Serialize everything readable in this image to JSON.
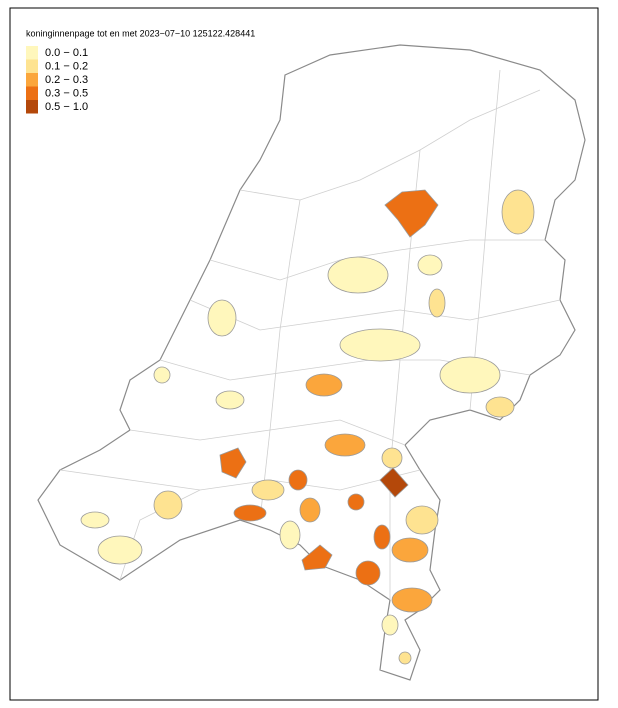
{
  "title": "koninginnenpage tot en met 2023−07−10 125122.428441",
  "legend": [
    {
      "label": "0.0 − 0.1",
      "color": "#fff7bc"
    },
    {
      "label": "0.1 − 0.2",
      "color": "#fee391"
    },
    {
      "label": "0.2 − 0.3",
      "color": "#fba63c"
    },
    {
      "label": "0.3 − 0.5",
      "color": "#ec7014"
    },
    {
      "label": "0.5 − 1.0",
      "color": "#b4480a"
    }
  ]
}
